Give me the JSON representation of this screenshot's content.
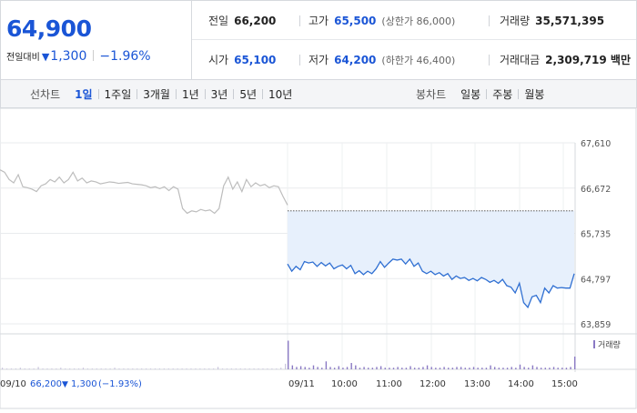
{
  "quote": {
    "price": "64,900",
    "change_label": "전일대비",
    "change_icon": "triangle-down-icon",
    "change_arrow": "▼",
    "change_value": "1,300",
    "change_rate": "−1.96%",
    "colors": {
      "down": "#1a55d6",
      "up": "#e0342e"
    },
    "row1": [
      {
        "label": "전일",
        "value": "66,200",
        "sub": "",
        "color": "black"
      },
      {
        "label": "고가",
        "value": "65,500",
        "sub": "(상한가 86,000)",
        "color": "blue"
      },
      {
        "label": "거래량",
        "value": "35,571,395",
        "sub": "",
        "color": "black"
      }
    ],
    "row2": [
      {
        "label": "시가",
        "value": "65,100",
        "sub": "",
        "color": "blue"
      },
      {
        "label": "저가",
        "value": "64,200",
        "sub": "(하한가 46,400)",
        "color": "blue"
      },
      {
        "label": "거래대금",
        "value": "2,309,719 백만",
        "sub": "",
        "color": "black"
      }
    ]
  },
  "toolbar": {
    "line_label": "선차트",
    "line_periods": [
      "1일",
      "1주일",
      "3개월",
      "1년",
      "3년",
      "5년",
      "10년"
    ],
    "active_period": "1일",
    "candle_label": "봉차트",
    "candle_periods": [
      "일봉",
      "주봉",
      "월봉"
    ]
  },
  "chart_data": {
    "type": "line",
    "title": "",
    "xlabel": "",
    "ylabel": "",
    "y_ticks": [
      "67,610",
      "66,672",
      "65,735",
      "64,797",
      "63,859"
    ],
    "ylim": [
      63859,
      67610
    ],
    "prev_close": 66200,
    "x_ticks": [
      "09/10",
      "09/11",
      "10:00",
      "11:00",
      "12:00",
      "13:00",
      "14:00",
      "15:00"
    ],
    "grid": true,
    "series": [
      {
        "session": "09/10",
        "color": "#bdbdbd",
        "values": [
          67050,
          67000,
          66850,
          66780,
          66950,
          66700,
          66680,
          66650,
          66600,
          66720,
          66760,
          66850,
          66800,
          66900,
          66780,
          66850,
          67000,
          66820,
          66880,
          66780,
          66820,
          66800,
          66760,
          66780,
          66800,
          66790,
          66770,
          66780,
          66790,
          66760,
          66750,
          66740,
          66720,
          66680,
          66700,
          66660,
          66700,
          66620,
          66700,
          66650,
          66250,
          66150,
          66200,
          66180,
          66230,
          66200,
          66220,
          66150,
          66250,
          66720,
          66900,
          66650,
          66800,
          66600,
          66850,
          66700,
          66780,
          66720,
          66750,
          66680,
          66720,
          66700,
          66500,
          66320
        ]
      },
      {
        "session": "09/11",
        "color": "#2f6fd2",
        "values": [
          65100,
          64950,
          65050,
          64980,
          65150,
          65120,
          65140,
          65050,
          65130,
          65060,
          65120,
          65000,
          65050,
          65080,
          65000,
          65070,
          64900,
          64960,
          64880,
          64950,
          64900,
          65000,
          65150,
          65030,
          65120,
          65200,
          65180,
          65200,
          65100,
          65200,
          65050,
          65120,
          64950,
          64900,
          64950,
          64880,
          64920,
          64850,
          64900,
          64780,
          64850,
          64800,
          64820,
          64760,
          64800,
          64750,
          64820,
          64780,
          64720,
          64760,
          64700,
          64780,
          64650,
          64620,
          64500,
          64700,
          64300,
          64200,
          64420,
          64450,
          64300,
          64600,
          64500,
          64650,
          64600,
          64610,
          64600,
          64600,
          64900
        ]
      }
    ],
    "volume": {
      "label": "거래량",
      "color": "#8a79c4",
      "session1": [
        2,
        1,
        1,
        1,
        2,
        1,
        1,
        1,
        3,
        1,
        1,
        1,
        1,
        2,
        1,
        1,
        1,
        1,
        2,
        1,
        1,
        1,
        1,
        1,
        1,
        2,
        1,
        1,
        1,
        1,
        1,
        1,
        1,
        1,
        1,
        1,
        1,
        1,
        1,
        1,
        1,
        1,
        1,
        1,
        1,
        1,
        1,
        1,
        3,
        1,
        1,
        1,
        1,
        1,
        1,
        1,
        1,
        1,
        1,
        1,
        1,
        1,
        2,
        7
      ],
      "session2": [
        36,
        5,
        3,
        4,
        3,
        2,
        5,
        3,
        2,
        10,
        3,
        2,
        4,
        2,
        3,
        8,
        5,
        2,
        3,
        2,
        2,
        3,
        4,
        2,
        2,
        2,
        3,
        2,
        2,
        4,
        2,
        2,
        3,
        5,
        3,
        2,
        2,
        3,
        2,
        2,
        3,
        3,
        2,
        2,
        3,
        2,
        2,
        2,
        5,
        3,
        2,
        2,
        2,
        3,
        2,
        6,
        3,
        2,
        5,
        3,
        2,
        2,
        2,
        3,
        2,
        2,
        2,
        3,
        16
      ]
    },
    "status_date": "09/10",
    "status_price": "66,200",
    "status_arrow": "▼",
    "status_change": "1,300",
    "status_rate": "(−1.93%)"
  }
}
